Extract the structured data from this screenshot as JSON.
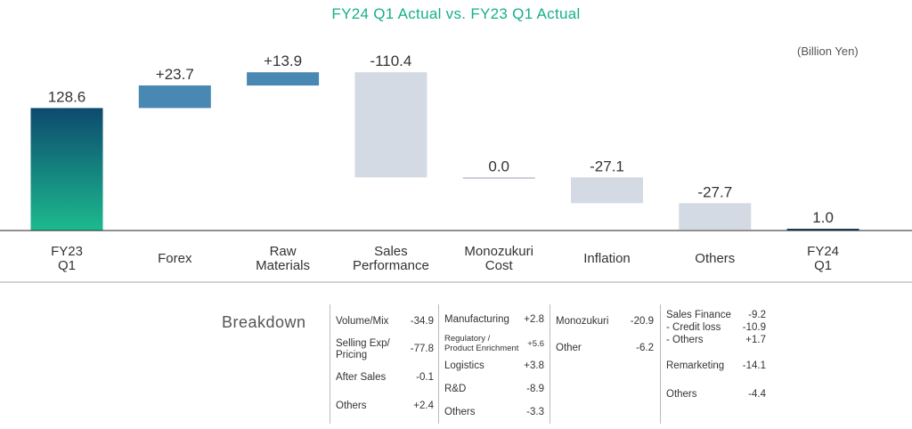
{
  "title": "FY24 Q1 Actual vs. FY23 Q1 Actual",
  "unit": "(Billion Yen)",
  "chart_data": {
    "type": "waterfall",
    "categories": [
      [
        "FY23",
        "Q1"
      ],
      [
        "Forex"
      ],
      [
        "Raw",
        "Materials"
      ],
      [
        "Sales",
        "Performance"
      ],
      [
        "Monozukuri",
        "Cost"
      ],
      [
        "Inflation"
      ],
      [
        "Others"
      ],
      [
        "FY24",
        "Q1"
      ]
    ],
    "values": [
      128.6,
      23.7,
      13.9,
      -110.4,
      0.0,
      -27.1,
      -27.7,
      1.0
    ],
    "labels": [
      "128.6",
      "+23.7",
      "+13.9",
      "-110.4",
      "0.0",
      "-27.1",
      "-27.7",
      "1.0"
    ],
    "kinds": [
      "total",
      "delta",
      "delta",
      "delta",
      "delta",
      "delta",
      "delta",
      "total"
    ],
    "ylabel": "Billion Yen",
    "colors": {
      "total_top": "#0d4a6e",
      "total_bottom": "#1cba8e",
      "positive": "#4a88b4",
      "negative": "#d4dae4",
      "zero": "#b8c0cc",
      "final": "#1c3e5e"
    }
  },
  "breakdown": {
    "title": "Breakdown",
    "columns": [
      {
        "items": [
          {
            "label": [
              "Volume/Mix"
            ],
            "value": "-34.9"
          },
          {
            "label": [
              "Selling Exp/",
              "Pricing"
            ],
            "value": "-77.8"
          },
          {
            "label": [
              "After Sales"
            ],
            "value": "-0.1"
          },
          {
            "label": [
              "Others"
            ],
            "value": "+2.4"
          }
        ]
      },
      {
        "items": [
          {
            "label": [
              "Manufacturing"
            ],
            "value": "+2.8"
          },
          {
            "label": [
              "Regulatory /",
              "Product Enrichment"
            ],
            "value": "+5.6",
            "small": true
          },
          {
            "label": [
              "Logistics"
            ],
            "value": "+3.8"
          },
          {
            "label": [
              "R&D"
            ],
            "value": "-8.9"
          },
          {
            "label": [
              "Others"
            ],
            "value": "-3.3"
          }
        ]
      },
      {
        "items": [
          {
            "label": [
              "Monozukuri"
            ],
            "value": "-20.9"
          },
          {
            "label": [
              "Other"
            ],
            "value": "-6.2"
          }
        ]
      },
      {
        "items": [
          {
            "label": [
              "Sales Finance"
            ],
            "value": "-9.2"
          },
          {
            "label": [
              "- Credit loss"
            ],
            "value": "-10.9"
          },
          {
            "label": [
              "- Others"
            ],
            "value": "+1.7"
          },
          {
            "label": [
              "Remarketing"
            ],
            "value": "-14.1"
          },
          {
            "label": [
              "Others"
            ],
            "value": "-4.4"
          }
        ]
      }
    ]
  }
}
